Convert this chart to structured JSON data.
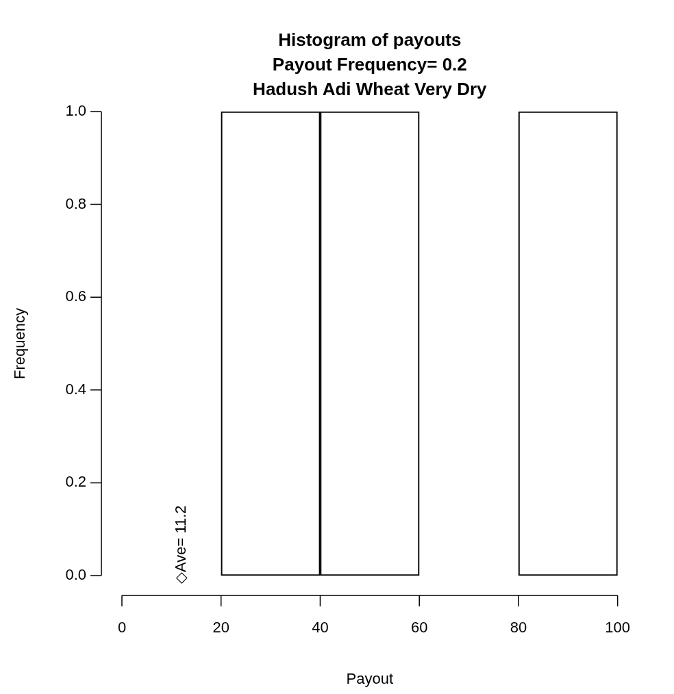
{
  "chart_data": {
    "type": "histogram",
    "title": "Histogram of payouts\nPayout Frequency= 0.2\nHadush Adi Wheat Very Dry",
    "xlabel": "Payout",
    "ylabel": "Frequency",
    "bins": [
      20,
      40,
      60,
      80,
      100
    ],
    "values": [
      1,
      1,
      0,
      1
    ],
    "color": "#000000",
    "xlim": [
      0,
      100
    ],
    "xticks": [
      0,
      20,
      40,
      60,
      80,
      100
    ],
    "ylim": [
      0,
      1
    ],
    "yticks": [
      {
        "value": 0,
        "label": "0.0"
      },
      {
        "value": 0.2,
        "label": "0.2"
      },
      {
        "value": 0.4,
        "label": "0.4"
      },
      {
        "value": 0.6,
        "label": "0.6"
      },
      {
        "value": 0.8,
        "label": "0.8"
      },
      {
        "value": 1,
        "label": "1.0"
      }
    ],
    "annotations": [
      "◇Ave= 11.2"
    ],
    "grid": false,
    "legend": false
  }
}
